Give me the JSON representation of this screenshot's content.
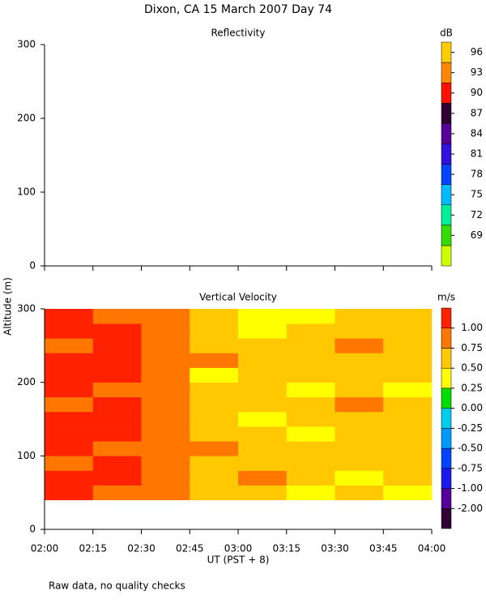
{
  "title": "Dixon, CA 15 March 2007  Day  74",
  "note": "Raw data, no quality checks",
  "chart_data": [
    {
      "type": "heatmap",
      "title": "Reflectivity",
      "xlim": [
        2,
        4
      ],
      "ylim": [
        0,
        300
      ],
      "yticks": [
        0,
        100,
        200,
        300
      ],
      "colorbar": {
        "label": "dB",
        "colors": [
          "#ccff00",
          "#33dd00",
          "#00ee99",
          "#00bbff",
          "#0044ff",
          "#3311dd",
          "#550099",
          "#330033",
          "#ff1100",
          "#ff8800",
          "#ffcc00"
        ],
        "ticks": [
          69,
          72,
          75,
          78,
          81,
          84,
          87,
          90,
          93,
          96
        ]
      }
    },
    {
      "type": "heatmap",
      "title": "Vertical Velocity",
      "ylabel": "Altitude (m)",
      "xlabel": "UT  (PST + 8)",
      "xlim": [
        2,
        4
      ],
      "ylim": [
        0,
        300
      ],
      "yticks": [
        0,
        100,
        200,
        300
      ],
      "xticks": [
        {
          "value": 2,
          "label": "02:00"
        },
        {
          "value": 2.25,
          "label": "02:15"
        },
        {
          "value": 2.5,
          "label": "02:30"
        },
        {
          "value": 2.75,
          "label": "02:45"
        },
        {
          "value": 3,
          "label": "03:00"
        },
        {
          "value": 3.25,
          "label": "03:15"
        },
        {
          "value": 3.5,
          "label": "03:30"
        },
        {
          "value": 3.75,
          "label": "03:45"
        },
        {
          "value": 4,
          "label": "04:00"
        }
      ],
      "x_edges": [
        2,
        2.25,
        2.5,
        2.75,
        3,
        3.25,
        3.5,
        3.75,
        4
      ],
      "y_edges": [
        40,
        60,
        80,
        100,
        120,
        140,
        160,
        180,
        200,
        220,
        240,
        260,
        280,
        300
      ],
      "values": [
        [
          1.05,
          0.9,
          0.8,
          0.6,
          0.6,
          0.45,
          0.6,
          0.45
        ],
        [
          1.05,
          1.05,
          0.9,
          0.6,
          0.8,
          0.6,
          0.45,
          0.6
        ],
        [
          0.9,
          1.05,
          0.8,
          0.6,
          0.6,
          0.6,
          0.6,
          0.6
        ],
        [
          1.05,
          0.9,
          0.9,
          0.8,
          0.6,
          0.6,
          0.6,
          0.6
        ],
        [
          1.05,
          1.05,
          0.8,
          0.6,
          0.6,
          0.45,
          0.6,
          0.6
        ],
        [
          1.05,
          1.05,
          0.9,
          0.6,
          0.45,
          0.6,
          0.6,
          0.6
        ],
        [
          0.9,
          1.05,
          0.8,
          0.6,
          0.6,
          0.6,
          0.8,
          0.6
        ],
        [
          1.05,
          0.9,
          0.8,
          0.6,
          0.6,
          0.45,
          0.6,
          0.45
        ],
        [
          1.05,
          1.05,
          0.9,
          0.45,
          0.6,
          0.6,
          0.6,
          0.6
        ],
        [
          1.05,
          1.05,
          0.8,
          0.8,
          0.6,
          0.6,
          0.6,
          0.6
        ],
        [
          0.9,
          1.05,
          0.8,
          0.6,
          0.6,
          0.6,
          0.8,
          0.6
        ],
        [
          1.05,
          1.05,
          0.9,
          0.6,
          0.45,
          0.6,
          0.6,
          0.6
        ],
        [
          1.05,
          0.9,
          0.8,
          0.6,
          0.45,
          0.45,
          0.6,
          0.6
        ]
      ],
      "colorbar": {
        "label": "m/s",
        "colors": [
          "#330033",
          "#550099",
          "#1a1aee",
          "#0044ff",
          "#0099ff",
          "#00ccee",
          "#00dd00",
          "#ffff00",
          "#ffc800",
          "#ff7700",
          "#ff2200"
        ],
        "ticks": [
          {
            "value": -2,
            "label": "-2.00"
          },
          {
            "value": -1,
            "label": "-1.00"
          },
          -0.75,
          {
            "value": -0.5,
            "label": "-0.50"
          },
          -0.25,
          {
            "value": 0,
            "label": "0.00"
          },
          0.25,
          {
            "value": 0.5,
            "label": "0.50"
          },
          0.75,
          {
            "value": 1,
            "label": "1.00"
          }
        ]
      }
    }
  ]
}
